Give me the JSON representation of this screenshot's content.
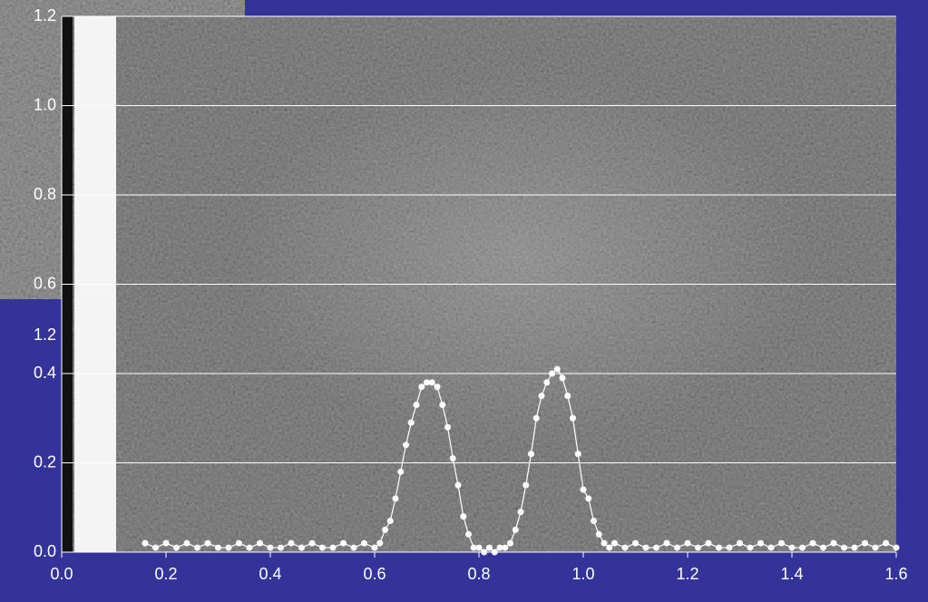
{
  "chart_data": {
    "type": "line",
    "annotation": "1.2",
    "xlim": [
      0,
      1.6
    ],
    "ylim": [
      0,
      1.2
    ],
    "xticks": [
      {
        "value": 0,
        "label": "0.0"
      },
      0.2,
      0.4,
      0.6,
      0.8,
      {
        "value": 1,
        "label": "1.0"
      },
      1.2,
      1.4,
      1.6
    ],
    "yticks": [
      {
        "value": 0,
        "label": "0.0"
      },
      0.2,
      0.4,
      0.6,
      0.8,
      {
        "value": 1,
        "label": "1.0"
      },
      1.2
    ],
    "grid": true,
    "x": [
      0.16,
      0.18,
      0.2,
      0.22,
      0.24,
      0.26,
      0.28,
      0.3,
      0.32,
      0.34,
      0.36,
      0.38,
      0.4,
      0.42,
      0.44,
      0.46,
      0.48,
      0.5,
      0.52,
      0.54,
      0.56,
      0.58,
      0.6,
      0.61,
      0.62,
      0.63,
      0.64,
      0.65,
      0.66,
      0.67,
      0.68,
      0.69,
      0.7,
      0.71,
      0.72,
      0.73,
      0.74,
      0.75,
      0.76,
      0.77,
      0.78,
      0.79,
      0.8,
      0.81,
      0.82,
      0.83,
      0.84,
      0.85,
      0.86,
      0.87,
      0.88,
      0.89,
      0.9,
      0.91,
      0.92,
      0.93,
      0.94,
      0.95,
      0.96,
      0.97,
      0.98,
      0.99,
      1.0,
      1.01,
      1.02,
      1.03,
      1.04,
      1.05,
      1.06,
      1.08,
      1.1,
      1.12,
      1.14,
      1.16,
      1.18,
      1.2,
      1.22,
      1.24,
      1.26,
      1.28,
      1.3,
      1.32,
      1.34,
      1.36,
      1.38,
      1.4,
      1.42,
      1.44,
      1.46,
      1.48,
      1.5,
      1.52,
      1.54,
      1.56,
      1.58,
      1.6
    ],
    "series": [
      {
        "color": "#ffffff",
        "values": [
          0.02,
          0.01,
          0.02,
          0.01,
          0.02,
          0.01,
          0.02,
          0.01,
          0.01,
          0.02,
          0.01,
          0.02,
          0.01,
          0.01,
          0.02,
          0.01,
          0.02,
          0.01,
          0.01,
          0.02,
          0.01,
          0.02,
          0.01,
          0.02,
          0.05,
          0.07,
          0.12,
          0.18,
          0.24,
          0.29,
          0.33,
          0.37,
          0.38,
          0.38,
          0.37,
          0.33,
          0.28,
          0.21,
          0.15,
          0.08,
          0.04,
          0.01,
          0.01,
          0,
          0.01,
          0,
          0.01,
          0.01,
          0.02,
          0.05,
          0.09,
          0.15,
          0.22,
          0.3,
          0.35,
          0.38,
          0.4,
          0.41,
          0.39,
          0.35,
          0.3,
          0.22,
          0.14,
          0.12,
          0.07,
          0.04,
          0.02,
          0.01,
          0.02,
          0.01,
          0.02,
          0.01,
          0.01,
          0.02,
          0.01,
          0.02,
          0.01,
          0.02,
          0.01,
          0.01,
          0.02,
          0.01,
          0.02,
          0.01,
          0.02,
          0.01,
          0.01,
          0.02,
          0.01,
          0.02,
          0.01,
          0.01,
          0.02,
          0.01,
          0.02,
          0.01
        ]
      }
    ]
  }
}
